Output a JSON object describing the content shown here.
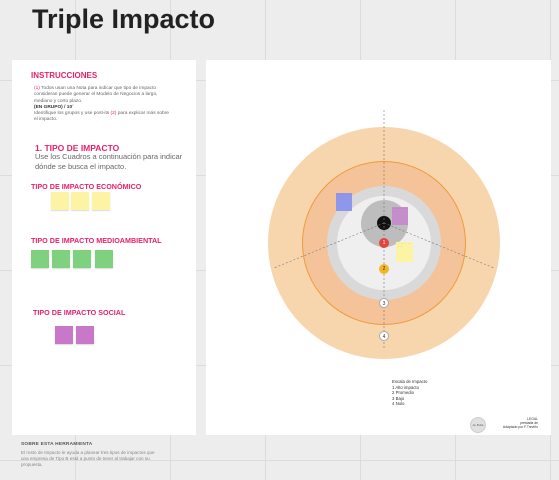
{
  "board": {
    "title": "Triple Impacto"
  },
  "instructions": {
    "heading": "INSTRUCCIONES",
    "step1_num": "(1)",
    "step1_text": "Todos usan una Nota para indicar que tipo de impacto consideran puede generar el Modelo de Negocios a largo, mediano y corto plazo.",
    "group_note": "(EN GRUPO) / 10´",
    "step2_prefix": "Identifique los grupos y use post-its",
    "step2_num": "(2)",
    "step2_suffix": "para explicar más sobre el impacto."
  },
  "tipo_impacto": {
    "title": "1. TIPO DE IMPACTO",
    "description": "Use los Cuadros a continuación para indicar dónde se busca el impacto."
  },
  "categories": {
    "economico": {
      "label": "TIPO DE IMPACTO ECONÓMICO",
      "color": "#fdf3a4"
    },
    "medioambiental": {
      "label": "TIPO DE IMPACTO MEDIOAMBIENTAL",
      "color": "#7fd17f"
    },
    "social": {
      "label": "TIPO DE IMPACTO SOCIAL",
      "color": "#c978c9"
    }
  },
  "target": {
    "scale_markers": [
      "1",
      "2",
      "3",
      "4"
    ],
    "marker_colors": [
      "#e2463c",
      "#f2b824",
      "#ffffff",
      "#ffffff"
    ],
    "ring_colors": {
      "outer": "#f8d6ad",
      "orange_line": "#ee9a3a",
      "middle": "#f5c39a",
      "grey": "#d9d9d9",
      "light": "#efefef",
      "inner": "#bdbdbd",
      "center": "#111111"
    },
    "notes": [
      {
        "color": "#8f97ea",
        "text": "· · · · · · · · · · · ·"
      },
      {
        "color": "#c58ecb",
        "text": "· · · · · · · · · · · ·"
      },
      {
        "color": "#fdf3a4",
        "text": "· · · · · · · · · · · · · · · ·"
      }
    ]
  },
  "legend": {
    "title": "Escala de Impacto",
    "items": [
      "1 Alto impacto",
      "2 Promedio",
      "3 Bajo",
      "4 Nulo"
    ]
  },
  "credit": {
    "logo_text": "de Bulla",
    "line1": "LEGAL",
    "line2": "prestada de",
    "line3": "Adaptado por F.Treviño"
  },
  "footer": {
    "title": "SOBRE ESTA HERRAMIENTA",
    "text": "El rosto de Impacto le ayuda a planear tres tipos de impactos que una empresa de Tipo B está a punto de tener al trabajar con su propuesta."
  }
}
